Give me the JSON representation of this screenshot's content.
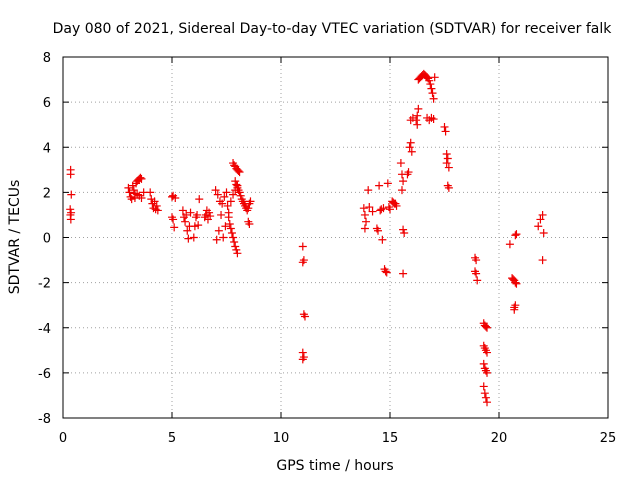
{
  "chart_data": {
    "type": "scatter",
    "title": "Day 080 of 2021, Sidereal Day-to-day VTEC variation (SDTVAR) for receiver falk",
    "xlabel": "GPS time / hours",
    "ylabel": "SDTVAR / TECUs",
    "xlim": [
      0,
      25
    ],
    "ylim": [
      -8,
      8
    ],
    "xticks": [
      0,
      5,
      10,
      15,
      20,
      25
    ],
    "yticks": [
      -8,
      -6,
      -4,
      -2,
      0,
      2,
      4,
      6,
      8
    ],
    "grid": true,
    "marker": "+",
    "color": "#ee0000",
    "series": [
      {
        "name": "SDTVAR",
        "points": [
          [
            0.35,
            3.0
          ],
          [
            0.35,
            2.8
          ],
          [
            0.38,
            1.9
          ],
          [
            0.33,
            1.25
          ],
          [
            0.37,
            1.1
          ],
          [
            0.34,
            1.0
          ],
          [
            0.36,
            0.8
          ],
          [
            3.0,
            2.2
          ],
          [
            3.05,
            2.0
          ],
          [
            3.1,
            1.8
          ],
          [
            3.15,
            1.7
          ],
          [
            3.2,
            2.3
          ],
          [
            3.25,
            2.1
          ],
          [
            3.3,
            1.95
          ],
          [
            3.35,
            2.4
          ],
          [
            3.4,
            2.5
          ],
          [
            3.45,
            2.55
          ],
          [
            3.5,
            2.6
          ],
          [
            3.55,
            2.65
          ],
          [
            3.6,
            2.6
          ],
          [
            3.4,
            1.9
          ],
          [
            3.5,
            1.85
          ],
          [
            3.6,
            1.75
          ],
          [
            3.7,
            2.0
          ],
          [
            3.3,
            1.75
          ],
          [
            4.0,
            2.0
          ],
          [
            4.05,
            1.7
          ],
          [
            4.1,
            1.5
          ],
          [
            4.15,
            1.3
          ],
          [
            4.2,
            1.6
          ],
          [
            4.25,
            1.25
          ],
          [
            4.3,
            1.4
          ],
          [
            4.35,
            1.2
          ],
          [
            5.0,
            1.8
          ],
          [
            5.05,
            1.85
          ],
          [
            5.0,
            0.9
          ],
          [
            5.05,
            0.8
          ],
          [
            5.1,
            0.45
          ],
          [
            5.15,
            1.75
          ],
          [
            5.5,
            1.2
          ],
          [
            5.55,
            0.9
          ],
          [
            5.6,
            0.7
          ],
          [
            5.65,
            1.0
          ],
          [
            5.7,
            0.3
          ],
          [
            5.75,
            -0.05
          ],
          [
            5.8,
            0.5
          ],
          [
            5.85,
            1.1
          ],
          [
            6.0,
            0.0
          ],
          [
            6.05,
            0.5
          ],
          [
            6.1,
            0.9
          ],
          [
            6.15,
            1.0
          ],
          [
            6.2,
            0.55
          ],
          [
            6.25,
            1.7
          ],
          [
            6.5,
            0.9
          ],
          [
            6.55,
            1.0
          ],
          [
            6.6,
            1.2
          ],
          [
            6.65,
            0.8
          ],
          [
            6.7,
            1.1
          ],
          [
            6.75,
            0.95
          ],
          [
            7.0,
            2.1
          ],
          [
            7.05,
            -0.1
          ],
          [
            7.1,
            1.9
          ],
          [
            7.15,
            0.3
          ],
          [
            7.2,
            1.6
          ],
          [
            7.25,
            1.0
          ],
          [
            7.3,
            1.5
          ],
          [
            7.35,
            0.0
          ],
          [
            7.4,
            1.8
          ],
          [
            7.45,
            0.5
          ],
          [
            7.5,
            2.0
          ],
          [
            7.55,
            1.4
          ],
          [
            7.6,
            0.9
          ],
          [
            7.65,
            0.6
          ],
          [
            7.7,
            0.4
          ],
          [
            7.75,
            0.2
          ],
          [
            7.8,
            0.0
          ],
          [
            7.85,
            -0.2
          ],
          [
            7.9,
            -0.4
          ],
          [
            7.95,
            -0.55
          ],
          [
            8.0,
            -0.7
          ],
          [
            7.6,
            1.1
          ],
          [
            7.7,
            1.6
          ],
          [
            7.8,
            1.9
          ],
          [
            7.9,
            2.1
          ],
          [
            8.0,
            2.3
          ],
          [
            7.8,
            3.3
          ],
          [
            7.85,
            3.2
          ],
          [
            7.9,
            3.15
          ],
          [
            7.95,
            3.05
          ],
          [
            8.0,
            3.0
          ],
          [
            8.05,
            2.95
          ],
          [
            8.1,
            2.9
          ],
          [
            7.9,
            2.5
          ],
          [
            7.95,
            2.35
          ],
          [
            8.0,
            2.2
          ],
          [
            8.05,
            2.1
          ],
          [
            8.1,
            2.0
          ],
          [
            8.15,
            1.85
          ],
          [
            8.2,
            1.7
          ],
          [
            8.25,
            1.6
          ],
          [
            8.3,
            1.5
          ],
          [
            8.35,
            1.4
          ],
          [
            8.4,
            1.3
          ],
          [
            8.45,
            1.2
          ],
          [
            8.5,
            1.3
          ],
          [
            8.55,
            1.5
          ],
          [
            8.6,
            1.6
          ],
          [
            8.5,
            0.7
          ],
          [
            8.55,
            0.6
          ],
          [
            11.0,
            -0.4
          ],
          [
            11.05,
            -1.0
          ],
          [
            11.0,
            -1.1
          ],
          [
            11.05,
            -3.4
          ],
          [
            11.1,
            -3.5
          ],
          [
            11.0,
            -5.1
          ],
          [
            11.05,
            -5.3
          ],
          [
            11.0,
            -5.4
          ],
          [
            13.8,
            1.3
          ],
          [
            13.85,
            1.0
          ],
          [
            13.9,
            0.7
          ],
          [
            13.85,
            0.4
          ],
          [
            14.0,
            2.1
          ],
          [
            14.05,
            1.35
          ],
          [
            14.2,
            1.15
          ],
          [
            14.4,
            0.4
          ],
          [
            14.45,
            0.3
          ],
          [
            14.5,
            2.3
          ],
          [
            14.55,
            1.2
          ],
          [
            14.6,
            1.25
          ],
          [
            14.65,
            -0.1
          ],
          [
            14.7,
            1.3
          ],
          [
            14.75,
            -1.4
          ],
          [
            14.8,
            -1.5
          ],
          [
            14.85,
            -1.55
          ],
          [
            14.9,
            2.4
          ],
          [
            14.95,
            1.35
          ],
          [
            15.0,
            1.25
          ],
          [
            15.1,
            1.6
          ],
          [
            15.15,
            1.55
          ],
          [
            15.2,
            1.5
          ],
          [
            15.25,
            1.5
          ],
          [
            15.3,
            1.4
          ],
          [
            15.5,
            3.3
          ],
          [
            15.55,
            2.8
          ],
          [
            15.6,
            2.5
          ],
          [
            15.55,
            2.1
          ],
          [
            15.6,
            0.35
          ],
          [
            15.65,
            0.2
          ],
          [
            15.6,
            -1.6
          ],
          [
            15.8,
            2.8
          ],
          [
            15.85,
            2.9
          ],
          [
            15.9,
            4.0
          ],
          [
            15.95,
            4.2
          ],
          [
            16.0,
            3.8
          ],
          [
            16.05,
            5.3
          ],
          [
            15.95,
            5.2
          ],
          [
            16.2,
            5.2
          ],
          [
            16.25,
            5.4
          ],
          [
            16.3,
            5.7
          ],
          [
            16.25,
            5.0
          ],
          [
            16.3,
            7.0
          ],
          [
            16.35,
            7.05
          ],
          [
            16.4,
            7.1
          ],
          [
            16.45,
            7.15
          ],
          [
            16.5,
            7.2
          ],
          [
            16.55,
            7.25
          ],
          [
            16.6,
            7.2
          ],
          [
            16.65,
            7.15
          ],
          [
            16.7,
            7.1
          ],
          [
            16.75,
            7.05
          ],
          [
            16.8,
            6.95
          ],
          [
            16.85,
            6.8
          ],
          [
            16.9,
            6.6
          ],
          [
            16.95,
            6.4
          ],
          [
            17.0,
            6.15
          ],
          [
            17.05,
            7.1
          ],
          [
            16.7,
            5.3
          ],
          [
            16.8,
            5.2
          ],
          [
            16.9,
            5.3
          ],
          [
            17.0,
            5.25
          ],
          [
            17.5,
            4.9
          ],
          [
            17.55,
            4.7
          ],
          [
            17.6,
            3.7
          ],
          [
            17.65,
            3.5
          ],
          [
            17.7,
            3.1
          ],
          [
            17.6,
            3.3
          ],
          [
            17.65,
            2.3
          ],
          [
            17.7,
            2.2
          ],
          [
            18.9,
            -0.9
          ],
          [
            18.95,
            -1.0
          ],
          [
            18.9,
            -1.5
          ],
          [
            18.95,
            -1.6
          ],
          [
            19.0,
            -1.9
          ],
          [
            19.3,
            -3.8
          ],
          [
            19.35,
            -3.9
          ],
          [
            19.4,
            -3.95
          ],
          [
            19.45,
            -4.0
          ],
          [
            19.3,
            -4.8
          ],
          [
            19.35,
            -4.9
          ],
          [
            19.4,
            -5.0
          ],
          [
            19.45,
            -5.1
          ],
          [
            19.3,
            -5.6
          ],
          [
            19.35,
            -5.8
          ],
          [
            19.4,
            -5.9
          ],
          [
            19.45,
            -6.0
          ],
          [
            19.3,
            -6.6
          ],
          [
            19.35,
            -6.9
          ],
          [
            19.4,
            -7.1
          ],
          [
            19.45,
            -7.3
          ],
          [
            20.5,
            -0.3
          ],
          [
            20.6,
            -1.8
          ],
          [
            20.65,
            -1.85
          ],
          [
            20.7,
            -1.9
          ],
          [
            20.75,
            -2.0
          ],
          [
            20.8,
            -2.05
          ],
          [
            20.75,
            0.1
          ],
          [
            20.8,
            0.15
          ],
          [
            20.7,
            -3.1
          ],
          [
            20.75,
            -3.0
          ],
          [
            20.7,
            -3.2
          ],
          [
            21.8,
            0.5
          ],
          [
            21.9,
            0.8
          ],
          [
            22.0,
            1.0
          ],
          [
            22.05,
            0.2
          ],
          [
            22.0,
            -1.0
          ]
        ]
      }
    ]
  }
}
